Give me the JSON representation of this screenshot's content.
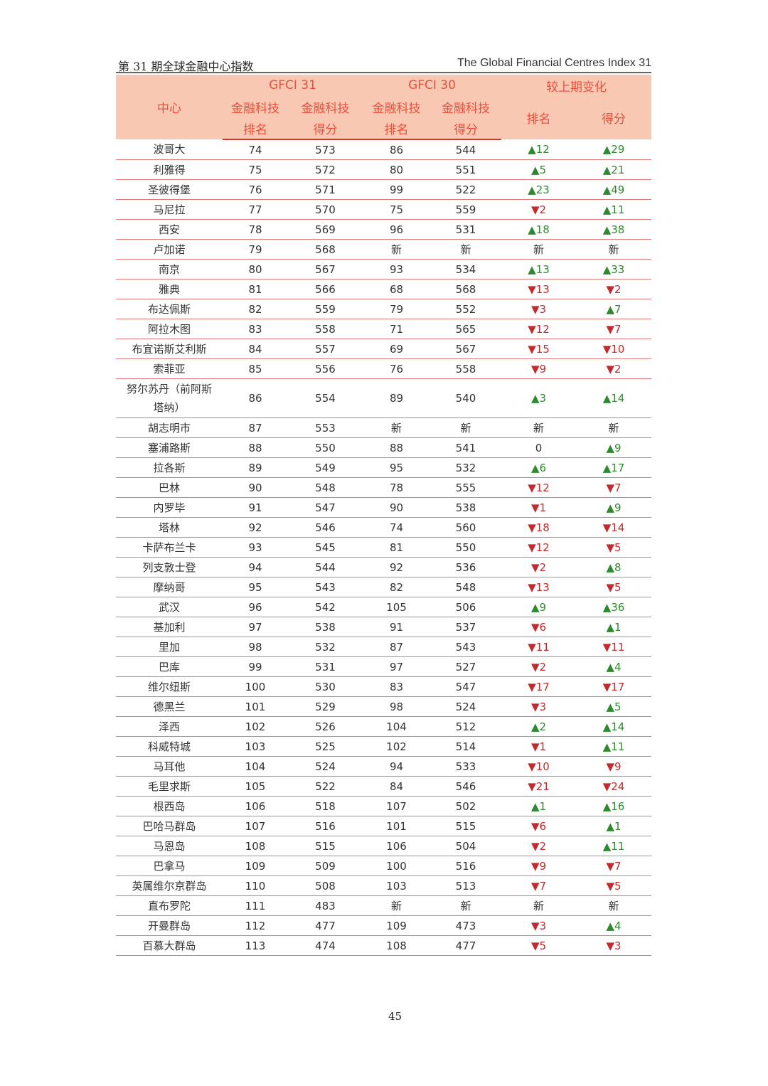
{
  "header": {
    "left": "第 31 期全球金融中心指数",
    "right": "The Global Financial Centres Index 31"
  },
  "table": {
    "group_headers": {
      "gfci31": "GFCI 31",
      "gfci30": "GFCI 30",
      "change": "较上期变化"
    },
    "columns": {
      "center": "中心",
      "fintech": "金融科技",
      "rank": "排名",
      "score": "得分"
    },
    "rows": [
      [
        "波哥大",
        "74",
        "573",
        "86",
        "544",
        "▲12",
        "▲29"
      ],
      [
        "利雅得",
        "75",
        "572",
        "80",
        "551",
        "▲5",
        "▲21"
      ],
      [
        "圣彼得堡",
        "76",
        "571",
        "99",
        "522",
        "▲23",
        "▲49"
      ],
      [
        "马尼拉",
        "77",
        "570",
        "75",
        "559",
        "▼2",
        "▲11"
      ],
      [
        "西安",
        "78",
        "569",
        "96",
        "531",
        "▲18",
        "▲38"
      ],
      [
        "卢加诺",
        "79",
        "568",
        "新",
        "新",
        "新",
        "新"
      ],
      [
        "南京",
        "80",
        "567",
        "93",
        "534",
        "▲13",
        "▲33"
      ],
      [
        "雅典",
        "81",
        "566",
        "68",
        "568",
        "▼13",
        "▼2"
      ],
      [
        "布达佩斯",
        "82",
        "559",
        "79",
        "552",
        "▼3",
        "▲7"
      ],
      [
        "阿拉木图",
        "83",
        "558",
        "71",
        "565",
        "▼12",
        "▼7"
      ],
      [
        "布宜诺斯艾利斯",
        "84",
        "557",
        "69",
        "567",
        "▼15",
        "▼10"
      ],
      [
        "索菲亚",
        "85",
        "556",
        "76",
        "558",
        "▼9",
        "▼2"
      ],
      [
        "努尔苏丹（前阿斯塔纳）",
        "86",
        "554",
        "89",
        "540",
        "▲3",
        "▲14"
      ],
      [
        "胡志明市",
        "87",
        "553",
        "新",
        "新",
        "新",
        "新"
      ],
      [
        "塞浦路斯",
        "88",
        "550",
        "88",
        "541",
        "0",
        "▲9"
      ],
      [
        "拉各斯",
        "89",
        "549",
        "95",
        "532",
        "▲6",
        "▲17"
      ],
      [
        "巴林",
        "90",
        "548",
        "78",
        "555",
        "▼12",
        "▼7"
      ],
      [
        "内罗毕",
        "91",
        "547",
        "90",
        "538",
        "▼1",
        "▲9"
      ],
      [
        "塔林",
        "92",
        "546",
        "74",
        "560",
        "▼18",
        "▼14"
      ],
      [
        "卡萨布兰卡",
        "93",
        "545",
        "81",
        "550",
        "▼12",
        "▼5"
      ],
      [
        "列支敦士登",
        "94",
        "544",
        "92",
        "536",
        "▼2",
        "▲8"
      ],
      [
        "摩纳哥",
        "95",
        "543",
        "82",
        "548",
        "▼13",
        "▼5"
      ],
      [
        "武汉",
        "96",
        "542",
        "105",
        "506",
        "▲9",
        "▲36"
      ],
      [
        "基加利",
        "97",
        "538",
        "91",
        "537",
        "▼6",
        "▲1"
      ],
      [
        "里加",
        "98",
        "532",
        "87",
        "543",
        "▼11",
        "▼11"
      ],
      [
        "巴库",
        "99",
        "531",
        "97",
        "527",
        "▼2",
        "▲4"
      ],
      [
        "维尔纽斯",
        "100",
        "530",
        "83",
        "547",
        "▼17",
        "▼17"
      ],
      [
        "德黑兰",
        "101",
        "529",
        "98",
        "524",
        "▼3",
        "▲5"
      ],
      [
        "泽西",
        "102",
        "526",
        "104",
        "512",
        "▲2",
        "▲14"
      ],
      [
        "科威特城",
        "103",
        "525",
        "102",
        "514",
        "▼1",
        "▲11"
      ],
      [
        "马耳他",
        "104",
        "524",
        "94",
        "533",
        "▼10",
        "▼9"
      ],
      [
        "毛里求斯",
        "105",
        "522",
        "84",
        "546",
        "▼21",
        "▼24"
      ],
      [
        "根西岛",
        "106",
        "518",
        "107",
        "502",
        "▲1",
        "▲16"
      ],
      [
        "巴哈马群岛",
        "107",
        "516",
        "101",
        "515",
        "▼6",
        "▲1"
      ],
      [
        "马恩岛",
        "108",
        "515",
        "106",
        "504",
        "▼2",
        "▲11"
      ],
      [
        "巴拿马",
        "109",
        "509",
        "100",
        "516",
        "▼9",
        "▼7"
      ],
      [
        "英属维尔京群岛",
        "110",
        "508",
        "103",
        "513",
        "▼7",
        "▼5"
      ],
      [
        "直布罗陀",
        "111",
        "483",
        "新",
        "新",
        "新",
        "新"
      ],
      [
        "开曼群岛",
        "112",
        "477",
        "109",
        "473",
        "▼3",
        "▲4"
      ],
      [
        "百慕大群岛",
        "113",
        "474",
        "108",
        "477",
        "▼5",
        "▼3"
      ]
    ]
  },
  "page_number": "45",
  "colors": {
    "header_bg": "#f9c8b2",
    "header_text": "#e8503e",
    "up": "#2f8a2f",
    "down": "#c22a2c"
  }
}
